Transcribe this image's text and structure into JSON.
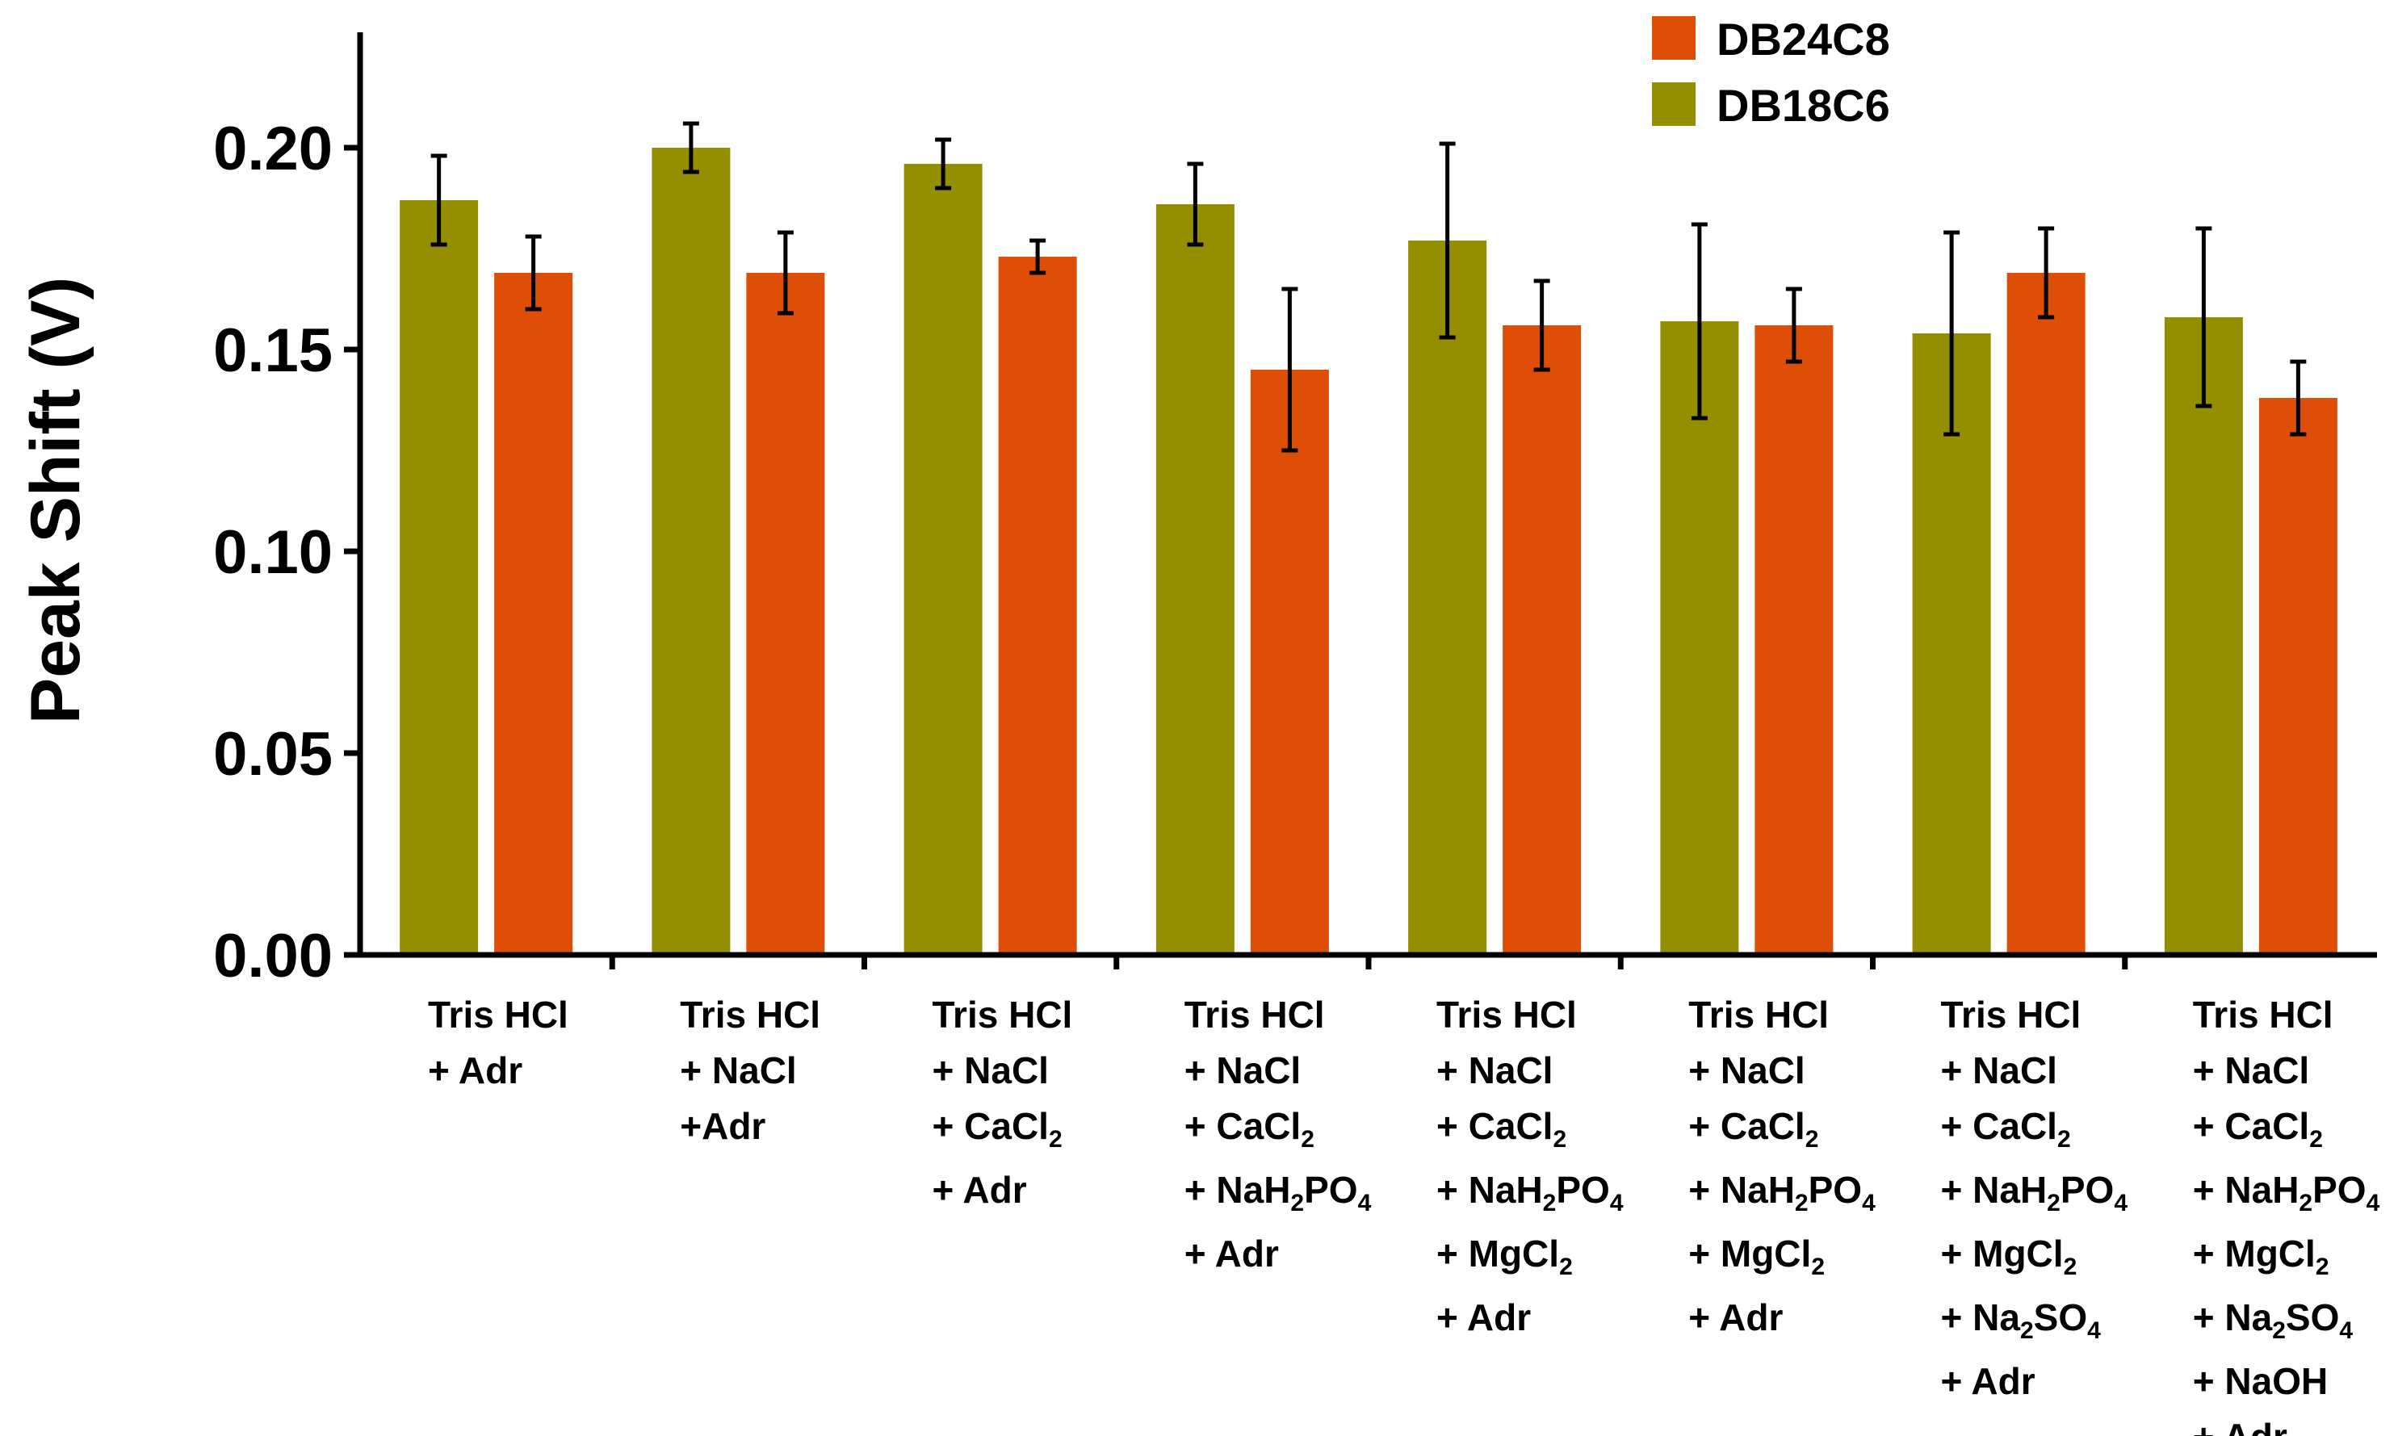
{
  "chart_data": {
    "type": "bar",
    "title": "",
    "xlabel": "",
    "ylabel": "Peak Shift (V)",
    "ylim": [
      0,
      0.2286
    ],
    "yticks": [
      "0.00",
      "0.05",
      "0.10",
      "0.15",
      "0.20"
    ],
    "ytick_values": [
      0,
      0.05,
      0.1,
      0.15,
      0.2
    ],
    "categories": [
      {
        "lines": [
          [
            "Tris HCl"
          ],
          [
            "+ Adr"
          ]
        ]
      },
      {
        "lines": [
          [
            "Tris HCl"
          ],
          [
            "+ NaCl"
          ],
          [
            "+Adr"
          ]
        ]
      },
      {
        "lines": [
          [
            "Tris HCl"
          ],
          [
            "+ NaCl"
          ],
          [
            "+ CaCl",
            "2"
          ],
          [
            "+ Adr"
          ]
        ]
      },
      {
        "lines": [
          [
            "Tris HCl"
          ],
          [
            "+ NaCl"
          ],
          [
            "+ CaCl",
            "2"
          ],
          [
            "+ NaH",
            "2",
            "PO",
            "4"
          ],
          [
            "+ Adr"
          ]
        ]
      },
      {
        "lines": [
          [
            "Tris HCl"
          ],
          [
            "+ NaCl"
          ],
          [
            "+ CaCl",
            "2"
          ],
          [
            "+ NaH",
            "2",
            "PO",
            "4"
          ],
          [
            "+ MgCl",
            "2"
          ],
          [
            "+ Adr"
          ]
        ]
      },
      {
        "lines": [
          [
            "Tris HCl"
          ],
          [
            "+ NaCl"
          ],
          [
            "+ CaCl",
            "2"
          ],
          [
            "+ NaH",
            "2",
            "PO",
            "4"
          ],
          [
            "+ MgCl",
            "2"
          ],
          [
            "+ Adr"
          ]
        ]
      },
      {
        "lines": [
          [
            "Tris HCl"
          ],
          [
            "+ NaCl"
          ],
          [
            "+ CaCl",
            "2"
          ],
          [
            "+ NaH",
            "2",
            "PO",
            "4"
          ],
          [
            "+ MgCl",
            "2"
          ],
          [
            "+ Na",
            "2",
            "SO",
            "4"
          ],
          [
            "+ Adr"
          ]
        ]
      },
      {
        "lines": [
          [
            "Tris HCl"
          ],
          [
            "+ NaCl"
          ],
          [
            "+ CaCl",
            "2"
          ],
          [
            "+ NaH",
            "2",
            "PO",
            "4"
          ],
          [
            "+ MgCl",
            "2"
          ],
          [
            "+ Na",
            "2",
            "SO",
            "4"
          ],
          [
            "+ NaOH"
          ],
          [
            "+ Adr"
          ]
        ]
      }
    ],
    "series": [
      {
        "name": "DB18C6",
        "color": "#948f00",
        "values": [
          0.187,
          0.2,
          0.196,
          0.186,
          0.177,
          0.157,
          0.154,
          0.158
        ],
        "errors": [
          0.011,
          0.006,
          0.006,
          0.01,
          0.024,
          0.024,
          0.025,
          0.022
        ]
      },
      {
        "name": "DB24C8",
        "color": "#de4e06",
        "values": [
          0.169,
          0.169,
          0.173,
          0.145,
          0.156,
          0.156,
          0.169,
          0.138
        ],
        "errors": [
          0.009,
          0.01,
          0.004,
          0.02,
          0.011,
          0.009,
          0.011,
          0.009
        ]
      }
    ],
    "legend": {
      "placement": "top-right",
      "entries": [
        {
          "name": "DB24C8",
          "color": "#de4e06"
        },
        {
          "name": "DB18C6",
          "color": "#948f00"
        }
      ]
    }
  }
}
